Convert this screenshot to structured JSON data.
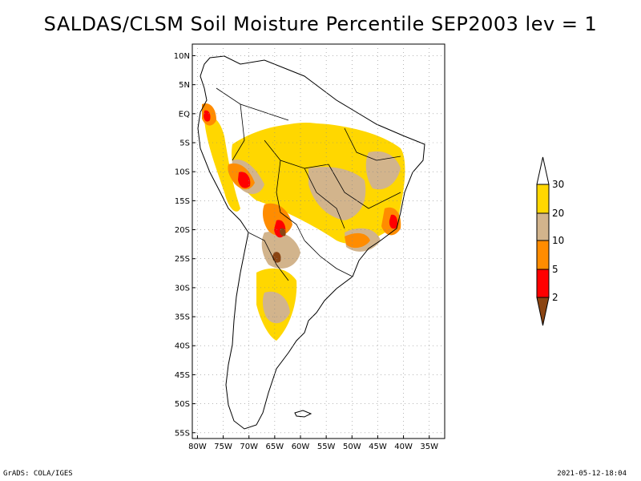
{
  "title": "SALDAS/CLSM Soil Moisture Percentile SEP2003 lev = 1",
  "footer": {
    "left": "GrADS: COLA/IGES",
    "right": "2021-05-12-18:04"
  },
  "map": {
    "lat_labels": [
      "10N",
      "5N",
      "EQ",
      "5S",
      "10S",
      "15S",
      "20S",
      "25S",
      "30S",
      "35S",
      "40S",
      "45S",
      "50S",
      "55S"
    ],
    "lon_labels": [
      "80W",
      "75W",
      "70W",
      "65W",
      "60W",
      "55W",
      "50W",
      "45W",
      "40W",
      "35W"
    ],
    "lon_range": [
      -81,
      -32
    ],
    "lat_range": [
      -56,
      12
    ],
    "grid": true
  },
  "legend": {
    "levels": [
      "2",
      "5",
      "10",
      "20",
      "30"
    ],
    "colors": {
      "below_2": "#8b4513",
      "2_to_5": "#ff0000",
      "5_to_10": "#ff8c00",
      "10_to_20": "#d2b48c",
      "20_to_30": "#ffd700",
      "above_30": "#ffffff"
    }
  }
}
